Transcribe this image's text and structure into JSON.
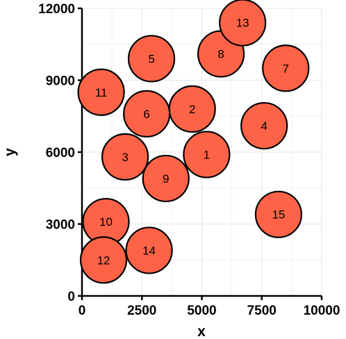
{
  "chart_data": {
    "type": "scatter",
    "xlabel": "x",
    "ylabel": "y",
    "xlim": [
      0,
      10000
    ],
    "ylim": [
      0,
      12000
    ],
    "xticks": [
      0,
      2500,
      5000,
      7500,
      10000
    ],
    "yticks": [
      0,
      3000,
      6000,
      9000,
      12000
    ],
    "grid": true,
    "marker_color": "#ff6347",
    "marker_edge_color": "#000000",
    "points": [
      {
        "label": "1",
        "x": 5200,
        "y": 5900
      },
      {
        "label": "2",
        "x": 4600,
        "y": 7800
      },
      {
        "label": "3",
        "x": 1800,
        "y": 5800
      },
      {
        "label": "4",
        "x": 7600,
        "y": 7100
      },
      {
        "label": "5",
        "x": 2900,
        "y": 9900
      },
      {
        "label": "6",
        "x": 2700,
        "y": 7600
      },
      {
        "label": "7",
        "x": 8500,
        "y": 9500
      },
      {
        "label": "8",
        "x": 5800,
        "y": 10100
      },
      {
        "label": "9",
        "x": 3500,
        "y": 4900
      },
      {
        "label": "10",
        "x": 1000,
        "y": 3100
      },
      {
        "label": "11",
        "x": 800,
        "y": 8500
      },
      {
        "label": "12",
        "x": 900,
        "y": 1500
      },
      {
        "label": "13",
        "x": 6700,
        "y": 11400
      },
      {
        "label": "14",
        "x": 2800,
        "y": 1900
      },
      {
        "label": "15",
        "x": 8200,
        "y": 3400
      }
    ]
  }
}
